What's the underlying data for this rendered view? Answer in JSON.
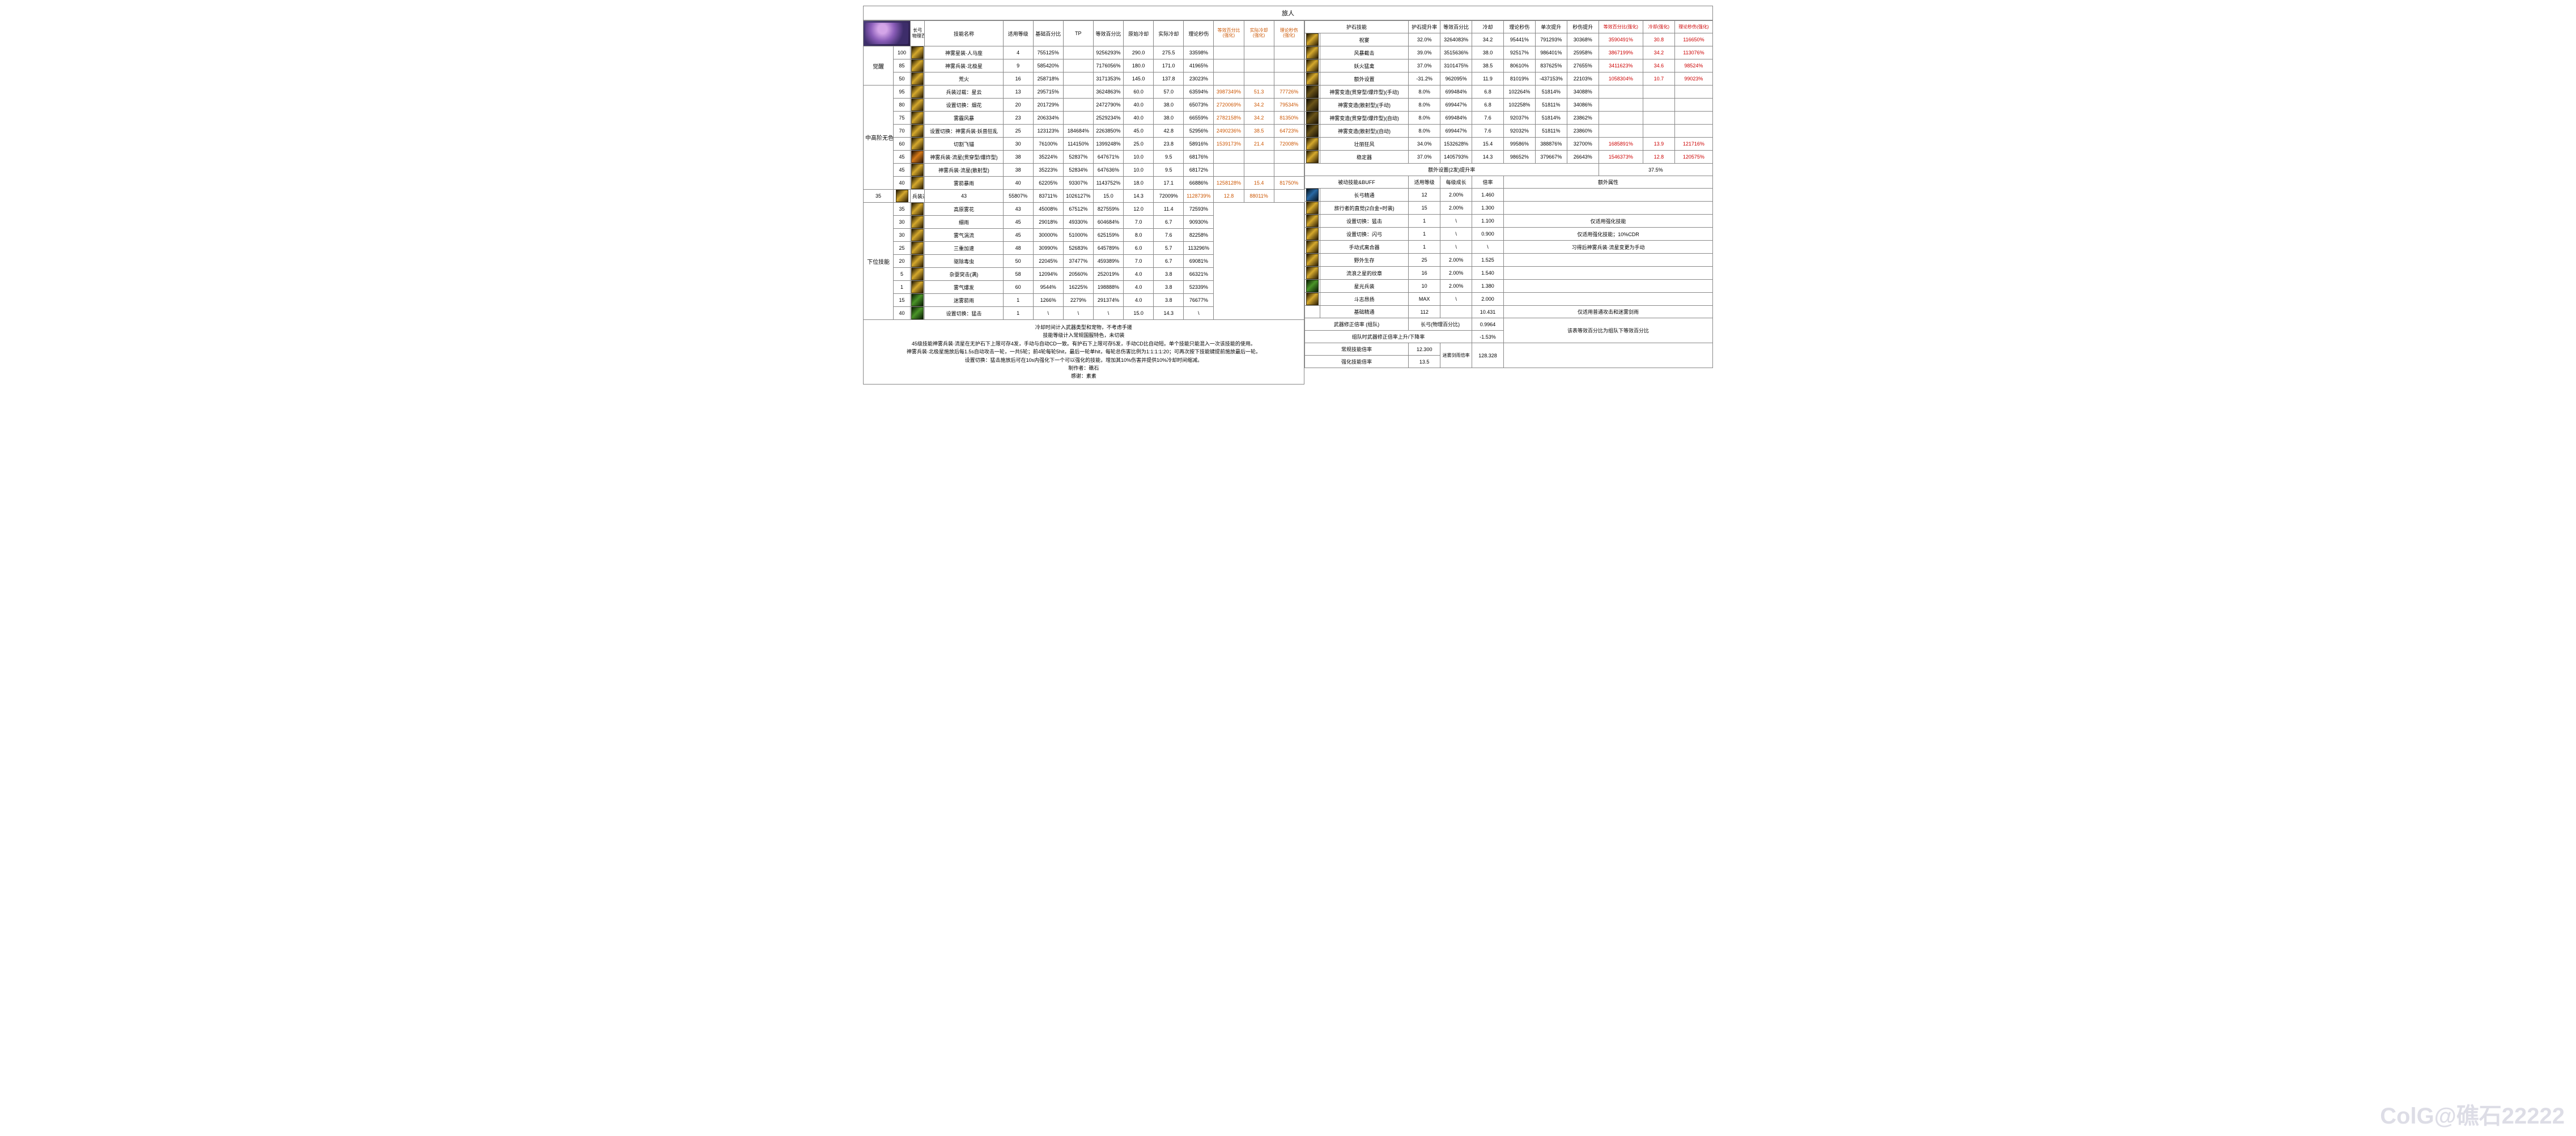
{
  "title": "旅人",
  "avatar_label": "长弓\n物理百分比",
  "left_headers": [
    "技能名称",
    "适用等级",
    "基础百分比",
    "TP",
    "等效百分比",
    "原始冷却",
    "实际冷却",
    "理论秒伤"
  ],
  "enhance_headers": [
    "等效百分比\n(强化)",
    "实际冷却\n(强化)",
    "理论秒伤\n(强化)"
  ],
  "right_headers": [
    "护石技能",
    "护石提升率",
    "等效百分比",
    "冷却",
    "理论秒伤",
    "单次提升",
    "秒伤提升"
  ],
  "right_enhance_headers": [
    "等效百分比(强化)",
    "冷却(强化)",
    "理论秒伤(强化)"
  ],
  "categories": {
    "c1": "觉醒",
    "c2": "中高阶无色",
    "c3": "下位技能"
  },
  "left_rows": [
    {
      "cat_span": 3,
      "cat": "c1",
      "lvl": "100",
      "ico": "si-gold",
      "name": "神雾星装·人马座",
      "v": [
        "4",
        "755125%",
        "",
        "9256293%",
        "290.0",
        "275.5",
        "33598%"
      ],
      "e": [
        "",
        "",
        ""
      ]
    },
    {
      "lvl": "85",
      "ico": "si-gold",
      "name": "神雾兵装·北极星",
      "v": [
        "9",
        "585420%",
        "",
        "7176056%",
        "180.0",
        "171.0",
        "41965%"
      ],
      "e": [
        "",
        "",
        ""
      ]
    },
    {
      "lvl": "50",
      "ico": "si-gold",
      "name": "荒火",
      "v": [
        "16",
        "258718%",
        "",
        "3171353%",
        "145.0",
        "137.8",
        "23023%"
      ],
      "e": [
        "",
        "",
        ""
      ]
    },
    {
      "cat_span": 8,
      "cat": "c2",
      "lvl": "95",
      "ico": "si-gold",
      "name": "兵装过载：星云",
      "v": [
        "13",
        "295715%",
        "",
        "3624863%",
        "60.0",
        "57.0",
        "63594%"
      ],
      "e": [
        "3987349%",
        "51.3",
        "77726%"
      ]
    },
    {
      "lvl": "80",
      "ico": "si-gold",
      "name": "设置切换：烟花",
      "v": [
        "20",
        "201729%",
        "",
        "2472790%",
        "40.0",
        "38.0",
        "65073%"
      ],
      "e": [
        "2720069%",
        "34.2",
        "79534%"
      ]
    },
    {
      "lvl": "75",
      "ico": "si-gold",
      "name": "雾霾风暴",
      "v": [
        "23",
        "206334%",
        "",
        "2529234%",
        "40.0",
        "38.0",
        "66559%"
      ],
      "e": [
        "2782158%",
        "34.2",
        "81350%"
      ]
    },
    {
      "lvl": "70",
      "ico": "si-gold",
      "name": "设置切换：神雾兵装·妖兽狂乱",
      "v": [
        "25",
        "123123%",
        "184684%",
        "2263850%",
        "45.0",
        "42.8",
        "52956%"
      ],
      "e": [
        "2490236%",
        "38.5",
        "64723%"
      ]
    },
    {
      "lvl": "60",
      "ico": "si-gold",
      "name": "切割飞锚",
      "v": [
        "30",
        "76100%",
        "114150%",
        "1399248%",
        "25.0",
        "23.8",
        "58916%"
      ],
      "e": [
        "1539173%",
        "21.4",
        "72008%"
      ]
    },
    {
      "lvl": "45",
      "ico": "si-orange",
      "name": "神雾兵装·流星(贯穿型/爆炸型)",
      "v": [
        "38",
        "35224%",
        "52837%",
        "647671%",
        "10.0",
        "9.5",
        "68176%"
      ],
      "e": [
        "",
        "",
        ""
      ]
    },
    {
      "lvl": "45",
      "ico": "si-gold",
      "name": "神雾兵装·流星(散射型)",
      "v": [
        "38",
        "35223%",
        "52834%",
        "647636%",
        "10.0",
        "9.5",
        "68172%"
      ],
      "e": [
        "",
        "",
        ""
      ]
    },
    {
      "lvl": "40",
      "ico": "si-gold",
      "name": "雾箭暴雨",
      "v": [
        "40",
        "62205%",
        "93307%",
        "1143752%",
        "18.0",
        "17.1",
        "66886%"
      ],
      "e": [
        "1258128%",
        "15.4",
        "81750%"
      ]
    },
    {
      "lvl": "35",
      "ico": "si-gold",
      "name": "兵装过载",
      "v": [
        "43",
        "55807%",
        "83711%",
        "1026127%",
        "15.0",
        "14.3",
        "72009%"
      ],
      "e": [
        "1128739%",
        "12.8",
        "88011%"
      ]
    },
    {
      "cat_span": 9,
      "cat": "c3",
      "lvl": "35",
      "ico": "si-gold",
      "name": "高原雾花",
      "v": [
        "43",
        "45008%",
        "67512%",
        "827559%",
        "12.0",
        "11.4",
        "72593%"
      ],
      "e": null
    },
    {
      "lvl": "30",
      "ico": "si-gold",
      "name": "细雨",
      "v": [
        "45",
        "29018%",
        "49330%",
        "604684%",
        "7.0",
        "6.7",
        "90930%"
      ],
      "e": null
    },
    {
      "lvl": "30",
      "ico": "si-gold",
      "name": "雾气涡流",
      "v": [
        "45",
        "30000%",
        "51000%",
        "625159%",
        "8.0",
        "7.6",
        "82258%"
      ],
      "e": null
    },
    {
      "lvl": "25",
      "ico": "si-gold",
      "name": "三重加速",
      "v": [
        "48",
        "30990%",
        "52683%",
        "645789%",
        "6.0",
        "5.7",
        "113296%"
      ],
      "e": null
    },
    {
      "lvl": "20",
      "ico": "si-gold",
      "name": "驱除毒虫",
      "v": [
        "50",
        "22045%",
        "37477%",
        "459389%",
        "7.0",
        "6.7",
        "69081%"
      ],
      "e": null
    },
    {
      "lvl": "5",
      "ico": "si-gold",
      "name": "杂耍突击(满)",
      "v": [
        "58",
        "12094%",
        "20560%",
        "252019%",
        "4.0",
        "3.8",
        "66321%"
      ],
      "e": null
    },
    {
      "lvl": "1",
      "ico": "si-gold",
      "name": "雾气爆发",
      "v": [
        "60",
        "9544%",
        "16225%",
        "198888%",
        "4.0",
        "3.8",
        "52339%"
      ],
      "e": null
    },
    {
      "lvl": "15",
      "ico": "si-green",
      "name": "迷雾箭雨",
      "v": [
        "1",
        "1266%",
        "2279%",
        "291374%",
        "4.0",
        "3.8",
        "76677%"
      ],
      "e": null
    },
    {
      "lvl": "40",
      "ico": "si-green",
      "name": "设置切换：猛击",
      "v": [
        "1",
        "\\",
        "\\",
        "\\",
        "15.0",
        "14.3",
        "\\"
      ],
      "e": null
    }
  ],
  "right_rows": [
    {
      "ico": "si-gold",
      "name": "祝宴",
      "v": [
        "32.0%",
        "3264083%",
        "34.2",
        "95441%",
        "791293%",
        "30368%"
      ],
      "e": [
        "3590491%",
        "30.8",
        "116650%"
      ]
    },
    {
      "ico": "si-gold",
      "name": "风暴截击",
      "v": [
        "39.0%",
        "3515636%",
        "38.0",
        "92517%",
        "986401%",
        "25958%"
      ],
      "e": [
        "3867199%",
        "34.2",
        "113076%"
      ]
    },
    {
      "ico": "si-gold",
      "name": "妖火猛禽",
      "v": [
        "37.0%",
        "3101475%",
        "38.5",
        "80610%",
        "837625%",
        "27655%"
      ],
      "e": [
        "3411623%",
        "34.6",
        "98524%"
      ]
    },
    {
      "ico": "si-gold",
      "name": "额外设置",
      "v": [
        "-31.2%",
        "962095%",
        "11.9",
        "81019%",
        "-437153%",
        "22103%"
      ],
      "e": [
        "1058304%",
        "10.7",
        "99023%"
      ]
    },
    {
      "ico": "si-dark",
      "name": "神雾变造(贯穿型/爆炸型)(手动)",
      "v": [
        "8.0%",
        "699484%",
        "6.8",
        "102264%",
        "51814%",
        "34088%"
      ],
      "e": [
        "",
        "",
        ""
      ]
    },
    {
      "ico": "si-dark",
      "name": "神雾变造(散射型)(手动)",
      "v": [
        "8.0%",
        "699447%",
        "6.8",
        "102258%",
        "51811%",
        "34086%"
      ],
      "e": [
        "",
        "",
        ""
      ]
    },
    {
      "ico": "si-dark",
      "name": "神雾变造(贯穿型/爆炸型)(自动)",
      "v": [
        "8.0%",
        "699484%",
        "7.6",
        "92037%",
        "51814%",
        "23862%"
      ],
      "e": [
        "",
        "",
        ""
      ]
    },
    {
      "ico": "si-dark",
      "name": "神雾变造(散射型)(自动)",
      "v": [
        "8.0%",
        "699447%",
        "7.6",
        "92032%",
        "51811%",
        "23860%"
      ],
      "e": [
        "",
        "",
        ""
      ]
    },
    {
      "ico": "si-gold",
      "name": "壮丽狂风",
      "v": [
        "34.0%",
        "1532628%",
        "15.4",
        "99586%",
        "388876%",
        "32700%"
      ],
      "e": [
        "1685891%",
        "13.9",
        "121716%"
      ]
    },
    {
      "ico": "si-gold",
      "name": "稳定器",
      "v": [
        "37.0%",
        "1405793%",
        "14.3",
        "98652%",
        "379667%",
        "26643%"
      ],
      "e": [
        "1546373%",
        "12.8",
        "120575%"
      ]
    }
  ],
  "extra_setup": {
    "label": "额外设置(2发)提升率",
    "value": "37.5%"
  },
  "buff_header": [
    "被动技能&BUFF",
    "适用等级",
    "每级成长",
    "倍率",
    "额外属性"
  ],
  "buff_rows": [
    {
      "ico": "si-blue",
      "name": "长弓精通",
      "v": [
        "12",
        "2.00%",
        "1.460"
      ],
      "note": ""
    },
    {
      "ico": "si-gold",
      "name": "旅行者的直觉(2白金+时装)",
      "v": [
        "15",
        "2.00%",
        "1.300"
      ],
      "note": ""
    },
    {
      "ico": "si-gold",
      "name": "设置切换：猛击",
      "v": [
        "1",
        "\\",
        "1.100"
      ],
      "note": "仅适用强化技能"
    },
    {
      "ico": "si-gold",
      "name": "设置切换：闪弓",
      "v": [
        "1",
        "\\",
        "0.900"
      ],
      "note": "仅适用强化技能；10%CDR"
    },
    {
      "ico": "si-gold",
      "name": "手动式离合器",
      "v": [
        "1",
        "\\",
        "\\"
      ],
      "note": "习得后神雾兵装·流星变更为手动"
    },
    {
      "ico": "si-gold",
      "name": "野外生存",
      "v": [
        "25",
        "2.00%",
        "1.525"
      ],
      "note": ""
    },
    {
      "ico": "si-gold",
      "name": "流浪之星的纹章",
      "v": [
        "16",
        "2.00%",
        "1.540"
      ],
      "note": ""
    },
    {
      "ico": "si-green",
      "name": "星光兵装",
      "v": [
        "10",
        "2.00%",
        "1.380"
      ],
      "note": ""
    },
    {
      "ico": "si-gold",
      "name": "斗志昂扬",
      "v": [
        "MAX",
        "\\",
        "2.000"
      ],
      "note": ""
    },
    {
      "ico": "",
      "name": "基础精通",
      "v": [
        "112",
        "",
        "10.431"
      ],
      "note": "仅适用普通攻击和迷雾剑雨"
    }
  ],
  "bottom_right": {
    "r1": {
      "label": "武器修正倍率 (组队)",
      "c1": "长弓(物理百分比)",
      "c2": "0.9964"
    },
    "r2": {
      "label": "组队时武器修正倍率上升/下降率",
      "c2": "-1.53%"
    },
    "r3": {
      "label": "常规技能倍率",
      "c1": "12.300",
      "c2l": "迷雾剑雨倍率",
      "big": "128.328"
    },
    "r4": {
      "label": "强化技能倍率",
      "c1": "13.5"
    },
    "note": "该表等效百分比为组队下等效百分比"
  },
  "notes": [
    "冷却时间计入武器类型和宠物，不考虑手搓",
    "技能等级计入常规国服特色，未切装",
    "45级技能神雾兵装·流星在无护石下上限可存4发，手动与自动CD一致。有护石下上限可存5发，手动CD比自动短。单个技能只能混入一次该技能的使用。",
    "神雾兵装·北极星施放后每1.5s自动攻击一轮，一共5轮；前4轮每轮5hit，最后一轮单hit，每轮总伤害比例为1:1:1:1:20；可再次按下技能键提前施放最后一轮。",
    "设置切换：猛击施放后可在10s内强化下一个可以强化的技能，增加其10%伤害并提供10%冷却时间缩减。",
    "制作者：礁石",
    "感谢：素素"
  ],
  "watermark": "ColG@礁石22222",
  "colors": {
    "orange": "#cc5500",
    "red": "#cc0000",
    "border": "#888888"
  }
}
